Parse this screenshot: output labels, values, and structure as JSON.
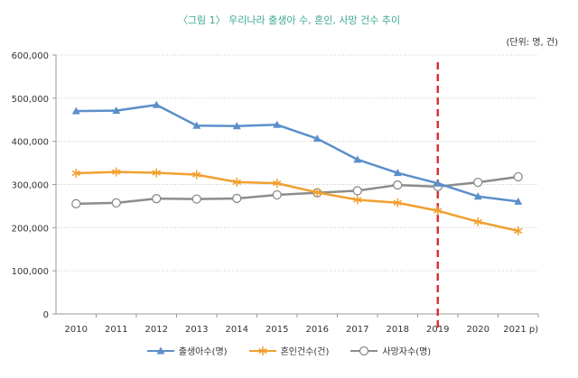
{
  "chart_data": {
    "type": "line",
    "title": "〈그림 1〉 우리나라 출생아 수, 혼인, 사망 건수 추이",
    "unit_label": "(단위: 명, 건)",
    "categories": [
      "2010",
      "2011",
      "2012",
      "2013",
      "2014",
      "2015",
      "2016",
      "2017",
      "2018",
      "2019",
      "2020",
      "2021 p)"
    ],
    "ylim": [
      0,
      600000
    ],
    "yticks": [
      "0",
      "100,000",
      "200,000",
      "300,000",
      "400,000",
      "500,000",
      "600,000"
    ],
    "ytick_values": [
      0,
      100000,
      200000,
      300000,
      400000,
      500000,
      600000
    ],
    "grid": true,
    "legend_position": "bottom",
    "marker_line": {
      "category": "2019",
      "color": "#d9323a",
      "style": "dashed"
    },
    "series": [
      {
        "name": "출생아수(명)",
        "color": "#5b8fc9",
        "marker": "triangle",
        "values": [
          470171,
          471265,
          484550,
          436455,
          435435,
          438420,
          406243,
          357771,
          326822,
          302676,
          272337,
          260500
        ]
      },
      {
        "name": "혼인건수(건)",
        "color": "#f0a030",
        "marker": "asterisk",
        "values": [
          326104,
          329087,
          327073,
          322807,
          305507,
          302828,
          281635,
          264455,
          257622,
          239159,
          213502,
          192500
        ]
      },
      {
        "name": "사망자수(명)",
        "color": "#8c8c8c",
        "marker": "circle",
        "values": [
          255405,
          257396,
          267221,
          266257,
          267692,
          275895,
          280827,
          285534,
          298820,
          295110,
          304948,
          317800
        ]
      }
    ]
  }
}
